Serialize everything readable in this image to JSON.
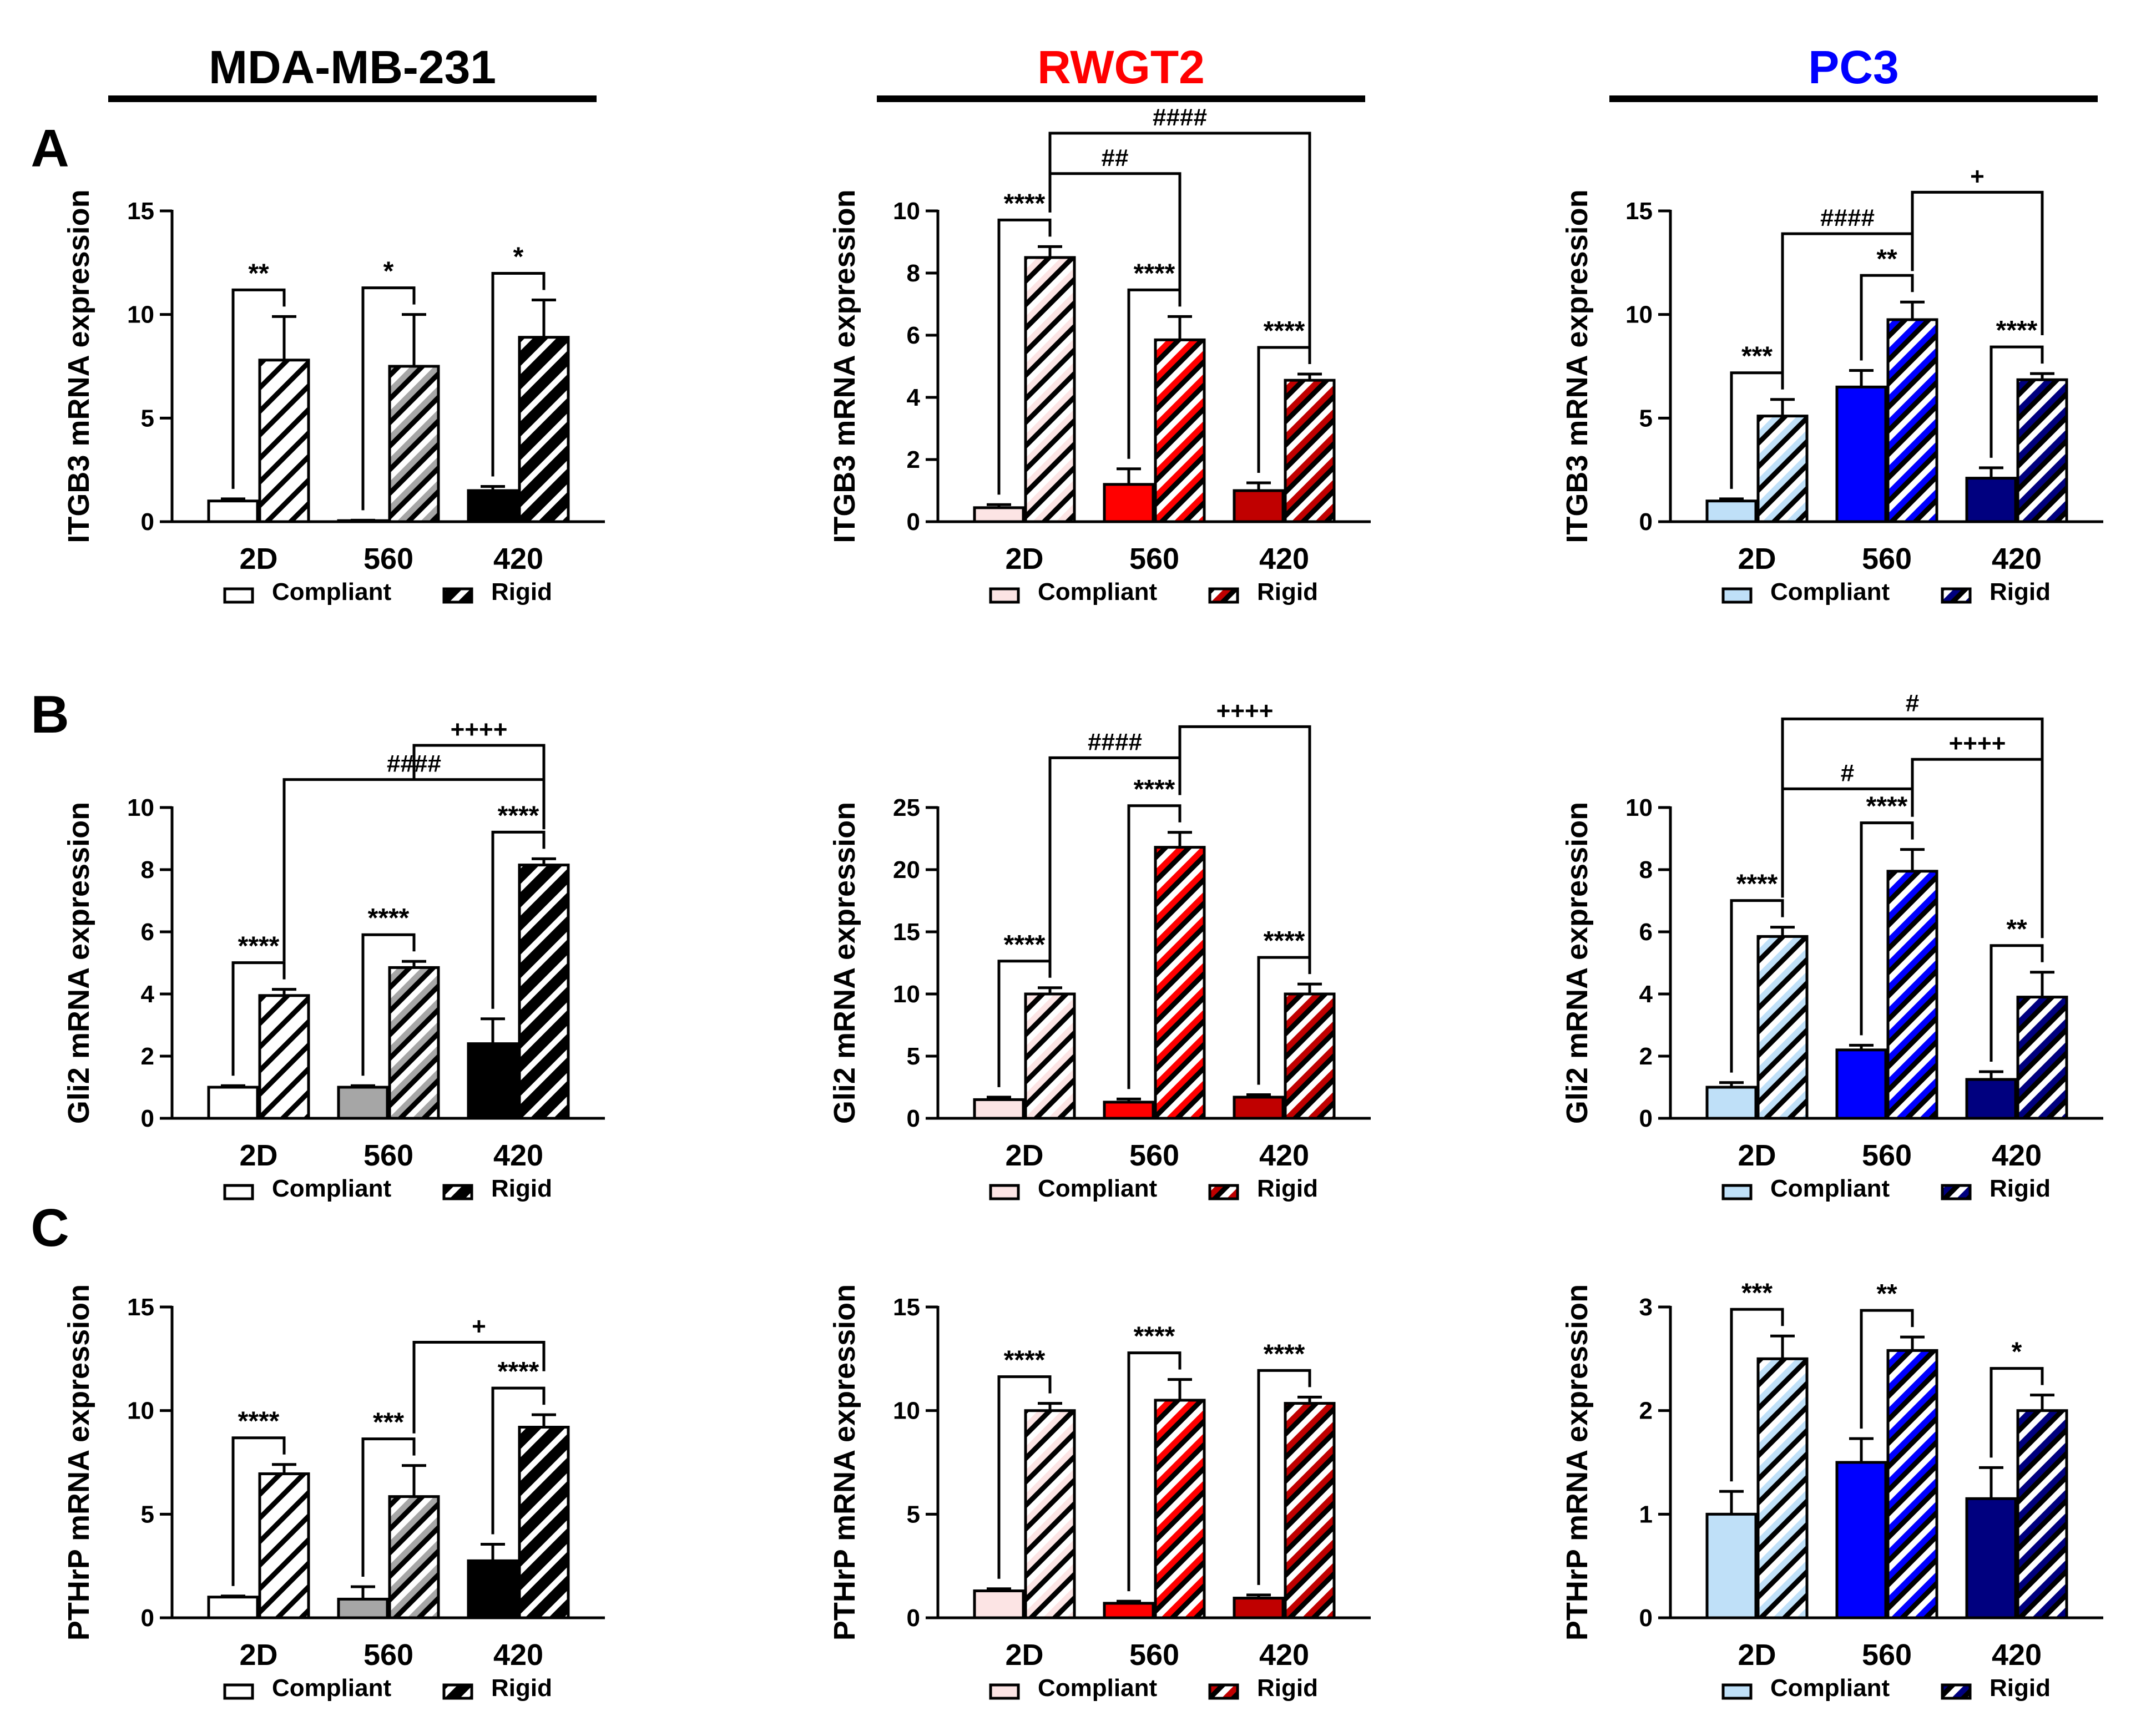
{
  "legend": {
    "compliant": "Compliant",
    "rigid": "Rigid"
  },
  "columns": [
    {
      "title": "MDA-MB-231",
      "title_color": "#000000",
      "colors": [
        "#ffffff",
        "#a6a6a6",
        "#000000"
      ]
    },
    {
      "title": "RWGT2",
      "title_color": "#ff0000",
      "colors": [
        "#fce4e4",
        "#ff0000",
        "#c00000"
      ]
    },
    {
      "title": "PC3",
      "title_color": "#0000ff",
      "colors": [
        "#bfe0f8",
        "#0000ff",
        "#00007f"
      ]
    }
  ],
  "rows": [
    {
      "letter": "A",
      "ylabel": "ITGB3 mRNA expression"
    },
    {
      "letter": "B",
      "ylabel": "Gli2 mRNA expression"
    },
    {
      "letter": "C",
      "ylabel": "PTHrP mRNA expression"
    }
  ],
  "chart_data": [
    {
      "type": "bar",
      "id": "A-MDA",
      "cell_line": "MDA-MB-231",
      "ylabel": "ITGB3 mRNA expression",
      "categories": [
        "2D",
        "560",
        "420"
      ],
      "ylim": [
        0,
        15
      ],
      "yticks": [
        0,
        5,
        10,
        15
      ],
      "series": [
        {
          "name": "Compliant",
          "values": [
            1.0,
            0.05,
            1.5
          ],
          "errors": [
            0.1,
            0.02,
            0.2
          ]
        },
        {
          "name": "Rigid",
          "values": [
            7.8,
            7.5,
            8.9
          ],
          "errors": [
            2.1,
            2.5,
            1.8
          ]
        }
      ],
      "annotations": [
        {
          "text": "**",
          "type": "pair",
          "g": 0
        },
        {
          "text": "*",
          "type": "pair",
          "g": 1
        },
        {
          "text": "*",
          "type": "pair",
          "g": 2
        }
      ]
    },
    {
      "type": "bar",
      "id": "A-RWGT2",
      "cell_line": "RWGT2",
      "ylabel": "ITGB3 mRNA expression",
      "categories": [
        "2D",
        "560",
        "420"
      ],
      "ylim": [
        0,
        10
      ],
      "yticks": [
        0,
        2,
        4,
        6,
        8,
        10
      ],
      "series": [
        {
          "name": "Compliant",
          "values": [
            0.45,
            1.2,
            1.0
          ],
          "errors": [
            0.1,
            0.5,
            0.25
          ]
        },
        {
          "name": "Rigid",
          "values": [
            8.5,
            5.85,
            4.55
          ],
          "errors": [
            0.35,
            0.75,
            0.2
          ]
        }
      ],
      "annotations": [
        {
          "text": "****",
          "type": "pair",
          "g": 0
        },
        {
          "text": "****",
          "type": "pair",
          "g": 1
        },
        {
          "text": "****",
          "type": "pair",
          "g": 2
        },
        {
          "text": "##",
          "type": "span",
          "from": 0,
          "to": 1,
          "level": 11.2,
          "drop_from": 9.95,
          "drop_to": 6.95
        },
        {
          "text": "####",
          "type": "span",
          "from": 0,
          "to": 2,
          "level": 12.5,
          "drop_from": 9.95,
          "drop_to": 5.1
        }
      ]
    },
    {
      "type": "bar",
      "id": "A-PC3",
      "cell_line": "PC3",
      "ylabel": "ITGB3 mRNA expression",
      "categories": [
        "2D",
        "560",
        "420"
      ],
      "ylim": [
        0,
        15
      ],
      "yticks": [
        0,
        5,
        10,
        15
      ],
      "series": [
        {
          "name": "Compliant",
          "values": [
            1.0,
            6.5,
            2.1
          ],
          "errors": [
            0.1,
            0.8,
            0.5
          ]
        },
        {
          "name": "Rigid",
          "values": [
            5.1,
            9.75,
            6.85
          ],
          "errors": [
            0.8,
            0.85,
            0.3
          ]
        }
      ],
      "annotations": [
        {
          "text": "***",
          "type": "pair",
          "g": 0
        },
        {
          "text": "**",
          "type": "pair",
          "g": 1
        },
        {
          "text": "****",
          "type": "pair",
          "g": 2
        },
        {
          "text": "####",
          "type": "span",
          "from": 0,
          "to": 1,
          "level": 13.9,
          "drop_from": 6.8,
          "drop_to": 12.1
        },
        {
          "text": "+",
          "type": "span",
          "from": 1,
          "to": 2,
          "level": 15.9,
          "drop_from": 12.1,
          "drop_to": 9.0
        }
      ]
    },
    {
      "type": "bar",
      "id": "B-MDA",
      "cell_line": "MDA-MB-231",
      "ylabel": "Gli2 mRNA expression",
      "categories": [
        "2D",
        "560",
        "420"
      ],
      "ylim": [
        0,
        10
      ],
      "yticks": [
        0,
        2,
        4,
        6,
        8,
        10
      ],
      "series": [
        {
          "name": "Compliant",
          "values": [
            1.0,
            1.0,
            2.4
          ],
          "errors": [
            0.05,
            0.05,
            0.8
          ]
        },
        {
          "name": "Rigid",
          "values": [
            3.95,
            4.85,
            8.15
          ],
          "errors": [
            0.2,
            0.2,
            0.2
          ]
        }
      ],
      "annotations": [
        {
          "text": "****",
          "type": "pair",
          "g": 0
        },
        {
          "text": "****",
          "type": "pair",
          "g": 1
        },
        {
          "text": "****",
          "type": "pair",
          "g": 2
        },
        {
          "text": "####",
          "type": "span",
          "from": 0,
          "to": 2,
          "level": 10.9,
          "drop_from": 5.05,
          "drop_to": 9.3
        },
        {
          "text": "++++",
          "type": "span",
          "from": 1,
          "to": 2,
          "level": 12.0,
          "drop_from": 10.9,
          "drop_to": 10.9
        }
      ]
    },
    {
      "type": "bar",
      "id": "B-RWGT2",
      "cell_line": "RWGT2",
      "ylabel": "Gli2 mRNA expression",
      "categories": [
        "2D",
        "560",
        "420"
      ],
      "ylim": [
        0,
        25
      ],
      "yticks": [
        0,
        5,
        10,
        15,
        20,
        25
      ],
      "series": [
        {
          "name": "Compliant",
          "values": [
            1.5,
            1.3,
            1.7
          ],
          "errors": [
            0.2,
            0.25,
            0.2
          ]
        },
        {
          "name": "Rigid",
          "values": [
            10.0,
            21.8,
            10.0
          ],
          "errors": [
            0.5,
            1.2,
            0.8
          ]
        }
      ],
      "annotations": [
        {
          "text": "****",
          "type": "pair",
          "g": 0
        },
        {
          "text": "****",
          "type": "pair",
          "g": 1
        },
        {
          "text": "****",
          "type": "pair",
          "g": 2
        },
        {
          "text": "####",
          "type": "span",
          "from": 0,
          "to": 1,
          "level": 29.0,
          "drop_from": 11.8,
          "drop_to": 26.0
        },
        {
          "text": "++++",
          "type": "span",
          "from": 1,
          "to": 2,
          "level": 31.5,
          "drop_from": 29.0,
          "drop_to": 11.8
        }
      ]
    },
    {
      "type": "bar",
      "id": "B-PC3",
      "cell_line": "PC3",
      "ylabel": "Gli2 mRNA expression",
      "categories": [
        "2D",
        "560",
        "420"
      ],
      "ylim": [
        0,
        10
      ],
      "yticks": [
        0,
        2,
        4,
        6,
        8,
        10
      ],
      "series": [
        {
          "name": "Compliant",
          "values": [
            1.0,
            2.2,
            1.25
          ],
          "errors": [
            0.15,
            0.15,
            0.25
          ]
        },
        {
          "name": "Rigid",
          "values": [
            5.85,
            7.95,
            3.9
          ],
          "errors": [
            0.3,
            0.7,
            0.8
          ]
        }
      ],
      "annotations": [
        {
          "text": "****",
          "type": "pair",
          "g": 0
        },
        {
          "text": "****",
          "type": "pair",
          "g": 1
        },
        {
          "text": "**",
          "type": "pair",
          "g": 2
        },
        {
          "text": "#",
          "type": "span",
          "from": 0,
          "to": 1,
          "level": 10.6,
          "drop_from": 7.1,
          "drop_to": 9.7
        },
        {
          "text": "++++",
          "type": "span",
          "from": 1,
          "to": 2,
          "level": 11.55,
          "drop_from": 10.6,
          "drop_to": 5.8
        },
        {
          "text": "#",
          "type": "span",
          "from": 0,
          "to": 2,
          "level": 12.85,
          "drop_from": 10.6,
          "drop_to": 11.55
        }
      ]
    },
    {
      "type": "bar",
      "id": "C-MDA",
      "cell_line": "MDA-MB-231",
      "ylabel": "PTHrP mRNA expression",
      "categories": [
        "2D",
        "560",
        "420"
      ],
      "ylim": [
        0,
        15
      ],
      "yticks": [
        0,
        5,
        10,
        15
      ],
      "series": [
        {
          "name": "Compliant",
          "values": [
            1.0,
            0.9,
            2.75
          ],
          "errors": [
            0.05,
            0.6,
            0.8
          ]
        },
        {
          "name": "Rigid",
          "values": [
            6.95,
            5.85,
            9.2
          ],
          "errors": [
            0.45,
            1.5,
            0.6
          ]
        }
      ],
      "annotations": [
        {
          "text": "****",
          "type": "pair",
          "g": 0
        },
        {
          "text": "***",
          "type": "pair",
          "g": 1
        },
        {
          "text": "****",
          "type": "pair",
          "g": 2
        },
        {
          "text": "+",
          "type": "span",
          "from": 1,
          "to": 2,
          "level": 13.3,
          "drop_from": 8.9,
          "drop_to": 11.9
        }
      ]
    },
    {
      "type": "bar",
      "id": "C-RWGT2",
      "cell_line": "RWGT2",
      "ylabel": "PTHrP mRNA expression",
      "categories": [
        "2D",
        "560",
        "420"
      ],
      "ylim": [
        0,
        15
      ],
      "yticks": [
        0,
        5,
        10,
        15
      ],
      "series": [
        {
          "name": "Compliant",
          "values": [
            1.3,
            0.7,
            0.95
          ],
          "errors": [
            0.1,
            0.1,
            0.15
          ]
        },
        {
          "name": "Rigid",
          "values": [
            10.0,
            10.5,
            10.35
          ],
          "errors": [
            0.35,
            1.0,
            0.3
          ]
        }
      ],
      "annotations": [
        {
          "text": "****",
          "type": "pair",
          "g": 0
        },
        {
          "text": "****",
          "type": "pair",
          "g": 1
        },
        {
          "text": "****",
          "type": "pair",
          "g": 2
        }
      ]
    },
    {
      "type": "bar",
      "id": "C-PC3",
      "cell_line": "PC3",
      "ylabel": "PTHrP mRNA expression",
      "categories": [
        "2D",
        "560",
        "420"
      ],
      "ylim": [
        0,
        3
      ],
      "yticks": [
        0,
        1,
        2,
        3
      ],
      "series": [
        {
          "name": "Compliant",
          "values": [
            1.0,
            1.5,
            1.15
          ],
          "errors": [
            0.22,
            0.23,
            0.3
          ]
        },
        {
          "name": "Rigid",
          "values": [
            2.5,
            2.58,
            2.0
          ],
          "errors": [
            0.22,
            0.13,
            0.15
          ]
        }
      ],
      "annotations": [
        {
          "text": "***",
          "type": "pair",
          "g": 0
        },
        {
          "text": "**",
          "type": "pair",
          "g": 1
        },
        {
          "text": "*",
          "type": "pair",
          "g": 2
        }
      ]
    }
  ]
}
